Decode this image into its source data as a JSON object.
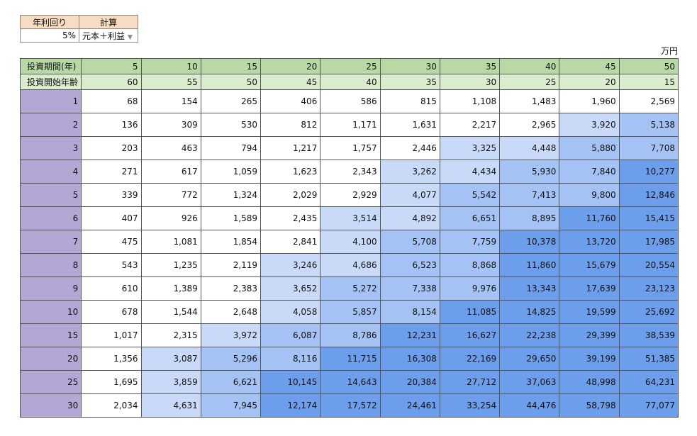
{
  "settings": {
    "rate_header": "年利回り",
    "calc_header": "計算",
    "rate_value": "5%",
    "calc_value": "元本＋利益"
  },
  "unit": "万円",
  "row_header_label": "投資期間(年)",
  "row_header_values": [
    "5",
    "10",
    "15",
    "20",
    "25",
    "30",
    "35",
    "40",
    "45",
    "50"
  ],
  "row_age_label": "投資開始年齢",
  "row_age_values": [
    "60",
    "55",
    "50",
    "45",
    "40",
    "35",
    "30",
    "25",
    "20",
    "15"
  ],
  "colors": {
    "settings_header": "#f8dcc2",
    "period_header": "#b8d9a6",
    "age_header": "#d9eccd",
    "row_label": "#b4a7d6",
    "tier0": "#ffffff",
    "tier1": "#c9daf8",
    "tier2": "#a4c2f4",
    "tier3": "#6d9eeb"
  },
  "rows": [
    {
      "label": "1",
      "cells": [
        "68",
        "154",
        "265",
        "406",
        "586",
        "815",
        "1,108",
        "1,483",
        "1,960",
        "2,569"
      ]
    },
    {
      "label": "2",
      "cells": [
        "136",
        "309",
        "530",
        "812",
        "1,171",
        "1,631",
        "2,217",
        "2,965",
        "3,920",
        "5,138"
      ]
    },
    {
      "label": "3",
      "cells": [
        "203",
        "463",
        "794",
        "1,217",
        "1,757",
        "2,446",
        "3,325",
        "4,448",
        "5,880",
        "7,708"
      ]
    },
    {
      "label": "4",
      "cells": [
        "271",
        "617",
        "1,059",
        "1,623",
        "2,343",
        "3,262",
        "4,434",
        "5,930",
        "7,840",
        "10,277"
      ]
    },
    {
      "label": "5",
      "cells": [
        "339",
        "772",
        "1,324",
        "2,029",
        "2,929",
        "4,077",
        "5,542",
        "7,413",
        "9,800",
        "12,846"
      ]
    },
    {
      "label": "6",
      "cells": [
        "407",
        "926",
        "1,589",
        "2,435",
        "3,514",
        "4,892",
        "6,651",
        "8,895",
        "11,760",
        "15,415"
      ]
    },
    {
      "label": "7",
      "cells": [
        "475",
        "1,081",
        "1,854",
        "2,841",
        "4,100",
        "5,708",
        "7,759",
        "10,378",
        "13,720",
        "17,985"
      ]
    },
    {
      "label": "8",
      "cells": [
        "543",
        "1,235",
        "2,119",
        "3,246",
        "4,686",
        "6,523",
        "8,868",
        "11,860",
        "15,679",
        "20,554"
      ]
    },
    {
      "label": "9",
      "cells": [
        "610",
        "1,389",
        "2,383",
        "3,652",
        "5,272",
        "7,338",
        "9,976",
        "13,343",
        "17,639",
        "23,123"
      ]
    },
    {
      "label": "10",
      "cells": [
        "678",
        "1,544",
        "2,648",
        "4,058",
        "5,857",
        "8,154",
        "11,085",
        "14,825",
        "19,599",
        "25,692"
      ]
    },
    {
      "label": "15",
      "cells": [
        "1,017",
        "2,315",
        "3,972",
        "6,087",
        "8,786",
        "12,231",
        "16,627",
        "22,238",
        "29,399",
        "38,539"
      ]
    },
    {
      "label": "20",
      "cells": [
        "1,356",
        "3,087",
        "5,296",
        "8,116",
        "11,715",
        "16,308",
        "22,169",
        "29,650",
        "39,199",
        "51,385"
      ]
    },
    {
      "label": "25",
      "cells": [
        "1,695",
        "3,859",
        "6,621",
        "10,145",
        "14,643",
        "20,384",
        "27,712",
        "37,063",
        "48,998",
        "64,231"
      ]
    },
    {
      "label": "30",
      "cells": [
        "2,034",
        "4,631",
        "7,945",
        "12,174",
        "17,572",
        "24,461",
        "33,254",
        "44,476",
        "58,798",
        "77,077"
      ]
    }
  ]
}
